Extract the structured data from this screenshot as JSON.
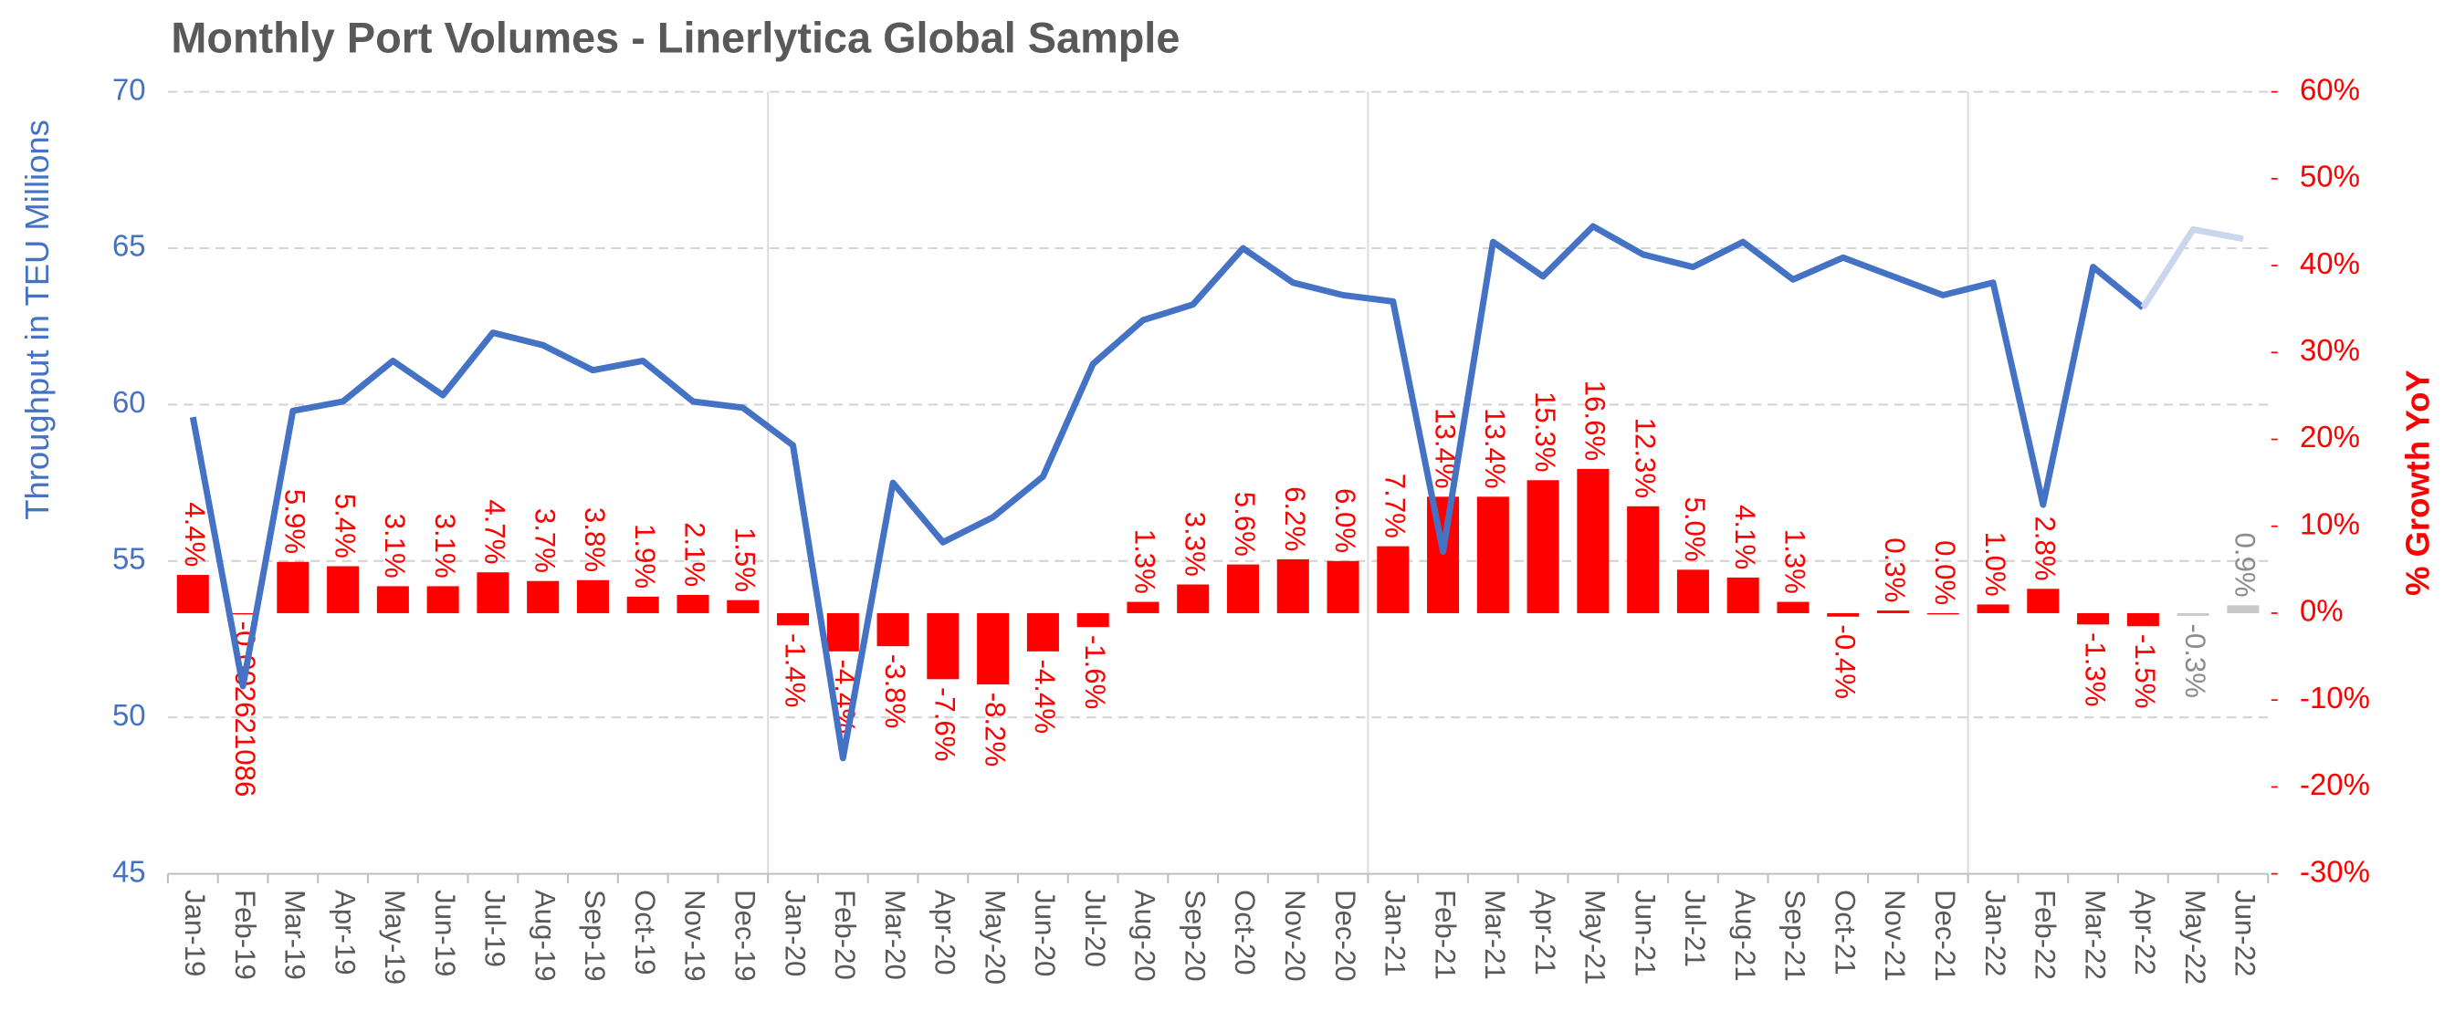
{
  "chart_data": {
    "type": "combo",
    "title": "Monthly Port Volumes - Linerlytica Global Sample",
    "y_label": "Throughput in TEU Millions",
    "y2_label": "% Growth YoY",
    "categories": [
      "Jan-19",
      "Feb-19",
      "Mar-19",
      "Apr-19",
      "May-19",
      "Jun-19",
      "Jul-19",
      "Aug-19",
      "Sep-19",
      "Oct-19",
      "Nov-19",
      "Dec-19",
      "Jan-20",
      "Feb-20",
      "Mar-20",
      "Apr-20",
      "May-20",
      "Jun-20",
      "Jul-20",
      "Aug-20",
      "Sep-20",
      "Oct-20",
      "Nov-20",
      "Dec-20",
      "Jan-21",
      "Feb-21",
      "Mar-21",
      "Apr-21",
      "May-21",
      "Jun-21",
      "Jul-21",
      "Aug-21",
      "Sep-21",
      "Oct-21",
      "Nov-21",
      "Dec-21",
      "Jan-22",
      "Feb-22",
      "Mar-22",
      "Apr-22",
      "May-22",
      "Jun-22"
    ],
    "ylim": [
      45,
      70
    ],
    "yticks": [
      45,
      50,
      55,
      60,
      65,
      70
    ],
    "y2lim": [
      -30,
      60
    ],
    "y2ticks": [
      {
        "value": -30,
        "label": "-30%"
      },
      {
        "value": -20,
        "label": "-20%"
      },
      {
        "value": -10,
        "label": "-10%"
      },
      {
        "value": 0,
        "label": "0%"
      },
      {
        "value": 10,
        "label": "10%"
      },
      {
        "value": 20,
        "label": "20%"
      },
      {
        "value": 30,
        "label": "30%"
      },
      {
        "value": 40,
        "label": "40%"
      },
      {
        "value": 50,
        "label": "50%"
      },
      {
        "value": 60,
        "label": "60%"
      }
    ],
    "grid": true,
    "series": [
      {
        "type": "bar",
        "axis": "y2",
        "values": [
          4.4,
          -0.002621086,
          5.9,
          5.4,
          3.1,
          3.1,
          4.7,
          3.7,
          3.8,
          1.9,
          2.1,
          1.5,
          -1.4,
          -4.4,
          -3.8,
          -7.6,
          -8.2,
          -4.4,
          -1.6,
          1.3,
          3.3,
          5.6,
          6.2,
          6.0,
          7.7,
          13.4,
          13.4,
          15.3,
          16.6,
          12.3,
          5.0,
          4.1,
          1.3,
          -0.4,
          0.3,
          0.0,
          1.0,
          2.8,
          -1.3,
          -1.5,
          -0.3,
          0.9
        ],
        "value_labels": [
          "4.4%",
          "-0.002621086",
          "5.9%",
          "5.4%",
          "3.1%",
          "3.1%",
          "4.7%",
          "3.7%",
          "3.8%",
          "1.9%",
          "2.1%",
          "1.5%",
          "-1.4%",
          "-4.4%",
          "-3.8%",
          "-7.6%",
          "-8.2%",
          "-4.4%",
          "-1.6%",
          "1.3%",
          "3.3%",
          "5.6%",
          "6.2%",
          "6.0%",
          "7.7%",
          "13.4%",
          "13.4%",
          "15.3%",
          "16.6%",
          "12.3%",
          "5.0%",
          "4.1%",
          "1.3%",
          "-0.4%",
          "0.3%",
          "0.0%",
          "1.0%",
          "2.8%",
          "-1.3%",
          "-1.5%",
          "-0.3%",
          "0.9%"
        ],
        "colors": [
          "#ff0000",
          "#ff0000",
          "#ff0000",
          "#ff0000",
          "#ff0000",
          "#ff0000",
          "#ff0000",
          "#ff0000",
          "#ff0000",
          "#ff0000",
          "#ff0000",
          "#ff0000",
          "#ff0000",
          "#ff0000",
          "#ff0000",
          "#ff0000",
          "#ff0000",
          "#ff0000",
          "#ff0000",
          "#ff0000",
          "#ff0000",
          "#ff0000",
          "#ff0000",
          "#ff0000",
          "#ff0000",
          "#ff0000",
          "#ff0000",
          "#ff0000",
          "#ff0000",
          "#ff0000",
          "#ff0000",
          "#ff0000",
          "#ff0000",
          "#ff0000",
          "#ff0000",
          "#ff0000",
          "#ff0000",
          "#ff0000",
          "#ff0000",
          "#ff0000",
          "#c8c8c8",
          "#c8c8c8"
        ],
        "label_colors": [
          "#ff0000",
          "#ff0000",
          "#ff0000",
          "#ff0000",
          "#ff0000",
          "#ff0000",
          "#ff0000",
          "#ff0000",
          "#ff0000",
          "#ff0000",
          "#ff0000",
          "#ff0000",
          "#ff0000",
          "#ff0000",
          "#ff0000",
          "#ff0000",
          "#ff0000",
          "#ff0000",
          "#ff0000",
          "#ff0000",
          "#ff0000",
          "#ff0000",
          "#ff0000",
          "#ff0000",
          "#ff0000",
          "#ff0000",
          "#ff0000",
          "#ff0000",
          "#ff0000",
          "#ff0000",
          "#ff0000",
          "#ff0000",
          "#ff0000",
          "#ff0000",
          "#ff0000",
          "#ff0000",
          "#ff0000",
          "#ff0000",
          "#ff0000",
          "#ff0000",
          "#8c8c8c",
          "#8c8c8c"
        ]
      },
      {
        "type": "line",
        "values": [
          59.6,
          51.0,
          59.8,
          60.1,
          61.4,
          60.3,
          62.3,
          61.9,
          61.1,
          61.4,
          60.1,
          59.9,
          58.7,
          48.7,
          57.5,
          55.6,
          56.4,
          57.7,
          61.3,
          62.7,
          63.2,
          65.0,
          63.9,
          63.5,
          63.3,
          55.3,
          65.2,
          64.1,
          65.7,
          64.8,
          64.4,
          65.2,
          64.0,
          64.7,
          64.1,
          63.5,
          63.9,
          56.8,
          64.4,
          63.1,
          65.6,
          65.3
        ],
        "colors": [
          "#4472c4",
          "#4472c4",
          "#4472c4",
          "#4472c4",
          "#4472c4",
          "#4472c4",
          "#4472c4",
          "#4472c4",
          "#4472c4",
          "#4472c4",
          "#4472c4",
          "#4472c4",
          "#4472c4",
          "#4472c4",
          "#4472c4",
          "#4472c4",
          "#4472c4",
          "#4472c4",
          "#4472c4",
          "#4472c4",
          "#4472c4",
          "#4472c4",
          "#4472c4",
          "#4472c4",
          "#4472c4",
          "#4472c4",
          "#4472c4",
          "#4472c4",
          "#4472c4",
          "#4472c4",
          "#4472c4",
          "#4472c4",
          "#4472c4",
          "#4472c4",
          "#4472c4",
          "#4472c4",
          "#4472c4",
          "#4472c4",
          "#4472c4",
          "#4472c4",
          "#c9d6ee",
          "#c9d6ee"
        ]
      }
    ]
  }
}
